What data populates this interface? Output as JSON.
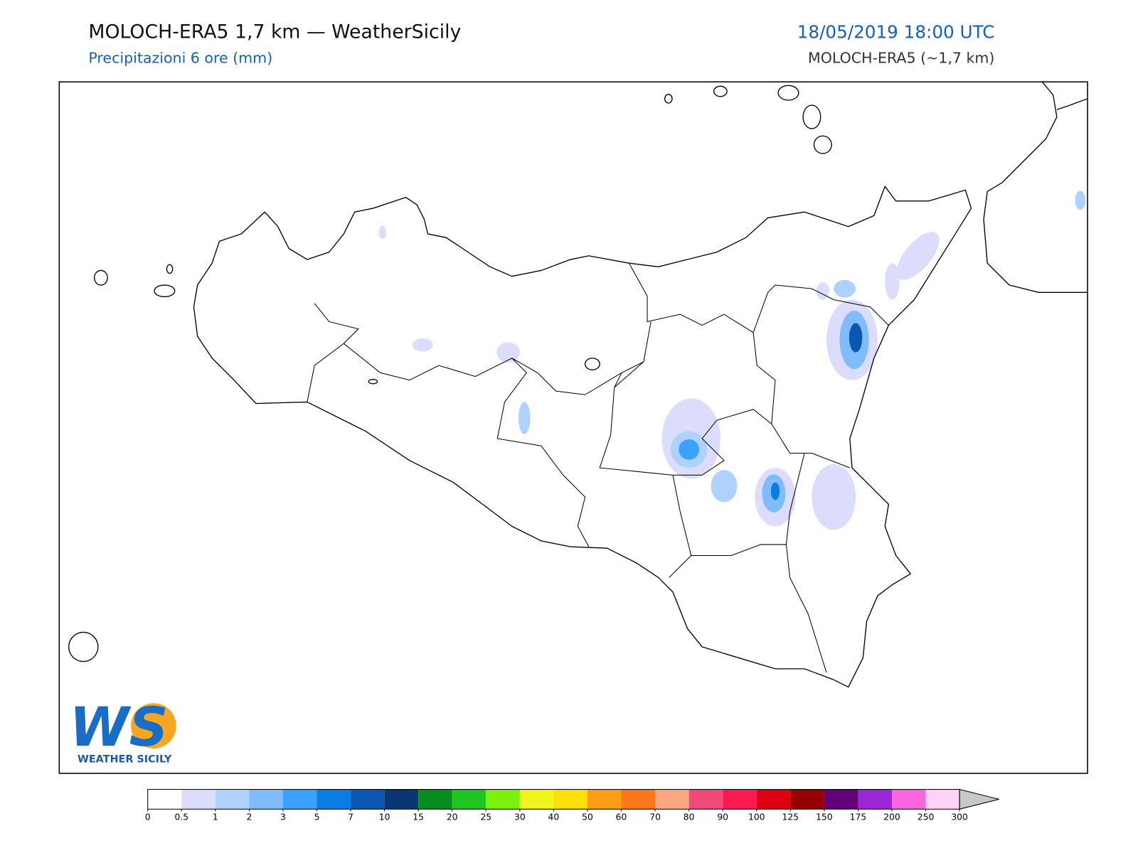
{
  "header": {
    "title": "MOLOCH-ERA5 1,7 km — WeatherSicily",
    "subtitle": "Precipitazioni 6 ore (mm)",
    "datetime": "18/05/2019 18:00 UTC",
    "model": "MOLOCH-ERA5 (~1,7 km)"
  },
  "logo": {
    "initials": "WS",
    "name": "WEATHER SICILY"
  },
  "colorbar": {
    "levels": [
      0,
      0.5,
      1,
      2,
      3,
      5,
      7,
      10,
      15,
      20,
      25,
      30,
      40,
      50,
      60,
      70,
      80,
      90,
      100,
      125,
      150,
      175,
      200,
      250,
      300
    ],
    "colors": [
      "#ffffff",
      "#dcdcfc",
      "#aed2fd",
      "#7fbcfd",
      "#3ba1fd",
      "#0a7de3",
      "#0a56b0",
      "#0a3673",
      "#078d1f",
      "#20c51f",
      "#7cf20c",
      "#f0f51e",
      "#fde00a",
      "#fd9d16",
      "#fc771a",
      "#fca77f",
      "#ee4b7b",
      "#fc1a50",
      "#dc0010",
      "#960000",
      "#640078",
      "#9c26d6",
      "#fa64de",
      "#fdd2f5"
    ],
    "extend_color": "#c8c8c8"
  }
}
